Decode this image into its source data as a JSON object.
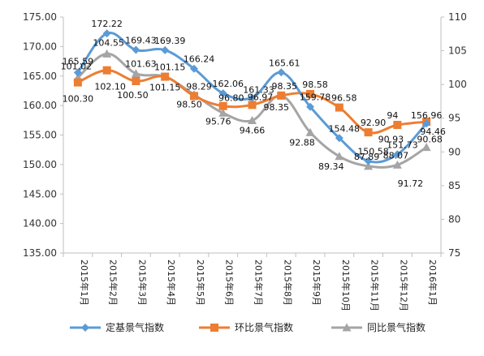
{
  "chart_data": {
    "type": "line",
    "categories": [
      "2015年1月",
      "2015年2月",
      "2015年3月",
      "2015年4月",
      "2015年5月",
      "2015年6月",
      "2015年7月",
      "2015年8月",
      "2015年9月",
      "2015年10月",
      "2015年11月",
      "2015年12月",
      "2016年1月"
    ],
    "y_left": {
      "min": 135,
      "max": 175,
      "step": 5,
      "ticks": [
        "135.00",
        "140.00",
        "145.00",
        "150.00",
        "155.00",
        "160.00",
        "165.00",
        "170.00",
        "175.00"
      ]
    },
    "y_right": {
      "min": 75,
      "max": 110,
      "step": 5,
      "ticks": [
        "75",
        "80",
        "85",
        "90",
        "95",
        "100",
        "105",
        "110"
      ]
    },
    "grid": false,
    "legend_position": "bottom",
    "series": [
      {
        "name": "定基景气指数",
        "axis": "left",
        "color": "#5B9BD5",
        "marker": "diamond",
        "values": [
          165.59,
          172.22,
          169.43,
          169.39,
          166.24,
          162.06,
          161.33,
          165.61,
          159.78,
          154.48,
          150.58,
          151.73,
          156.96
        ],
        "labels": [
          "165.59",
          "172.22",
          "169.43",
          "169.39",
          "166.24",
          "162.06",
          "161.33",
          "165.61",
          "159.78",
          "154.48",
          "150.58",
          "151.73",
          "156.96"
        ]
      },
      {
        "name": "环比景气指数",
        "axis": "right",
        "color": "#ED7D31",
        "marker": "square",
        "values": [
          100.3,
          102.1,
          100.5,
          101.15,
          98.29,
          96.8,
          96.97,
          98.35,
          98.58,
          96.58,
          92.9,
          94.0,
          94.46
        ],
        "labels": [
          "100.30",
          "102.10",
          "100.50",
          "101.15",
          "98.29",
          "96.80",
          "96.97",
          "98.35",
          "98.58",
          "96.58",
          "92.90",
          "94",
          "94.46"
        ]
      },
      {
        "name": "同比景气指数",
        "axis": "right",
        "color": "#A5A5A5",
        "marker": "triangle",
        "values": [
          101.02,
          104.55,
          101.63,
          101.15,
          98.5,
          95.76,
          94.66,
          98.35,
          92.88,
          89.34,
          87.89,
          88.07,
          90.68
        ],
        "labels": [
          "101.02",
          "104.55",
          "101.63",
          "101.15",
          "98.50",
          "95.76",
          "94.66",
          "98.35",
          "92.88",
          "89.34",
          "87.89",
          "88.07",
          "90.68"
        ]
      }
    ],
    "extra_labels": [
      "90.93",
      "91.72"
    ]
  }
}
